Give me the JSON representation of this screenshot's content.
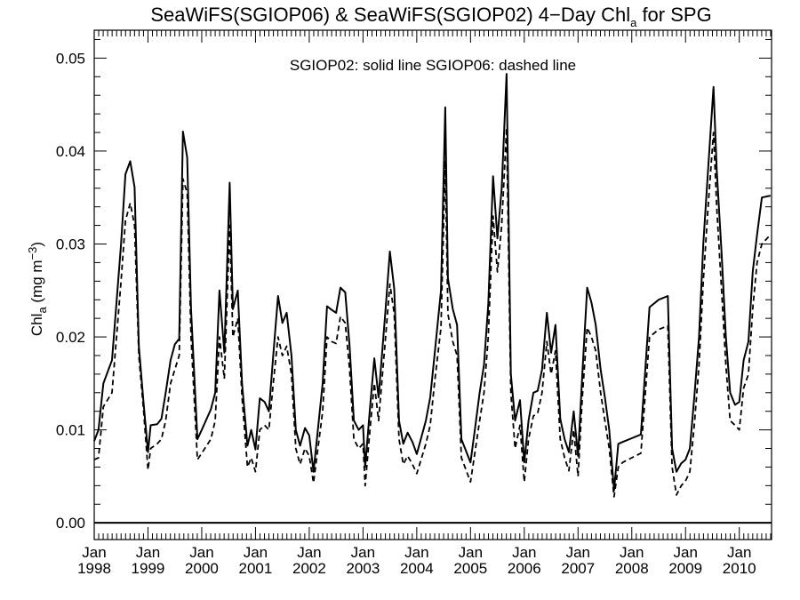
{
  "chart_data": {
    "type": "line",
    "title": "SeaWiFS(SGIOP06) & SeaWiFS(SGIOP02) 4−Day Chl",
    "title_subscript": "a",
    "title_suffix": " for SPG",
    "ylabel": "Chl",
    "ylabel_subscript": "a",
    "ylabel_units": " (mg m",
    "ylabel_units_superscript": "−3",
    "ylabel_units_close": ")",
    "xlabel": "",
    "ylim": [
      -0.0018,
      0.053
    ],
    "xlim": [
      1998.0,
      2010.6
    ],
    "grid": false,
    "annotation": "SGIOP02: solid line   SGIOP06: dashed line",
    "y_ticks": [
      0.0,
      0.01,
      0.02,
      0.03,
      0.04,
      0.05
    ],
    "y_tick_labels": [
      "0.00",
      "0.01",
      "0.02",
      "0.03",
      "0.04",
      "0.05"
    ],
    "x_ticks": [
      1998,
      1999,
      2000,
      2001,
      2002,
      2003,
      2004,
      2005,
      2006,
      2007,
      2008,
      2009,
      2010
    ],
    "x_tick_labels_top": [
      "Jan",
      "Jan",
      "Jan",
      "Jan",
      "Jan",
      "Jan",
      "Jan",
      "Jan",
      "Jan",
      "Jan",
      "Jan",
      "Jan",
      "Jan"
    ],
    "x_tick_labels_bottom": [
      "1998",
      "1999",
      "2000",
      "2001",
      "2002",
      "2003",
      "2004",
      "2005",
      "2006",
      "2007",
      "2008",
      "2009",
      "2010"
    ],
    "reference_line_y": 0.0,
    "series": [
      {
        "name": "SGIOP02",
        "style": "solid",
        "points": [
          [
            1998.0,
            0.0088
          ],
          [
            1998.08,
            0.01
          ],
          [
            1998.17,
            0.015
          ],
          [
            1998.33,
            0.0175
          ],
          [
            1998.5,
            0.03
          ],
          [
            1998.58,
            0.0375
          ],
          [
            1998.67,
            0.0389
          ],
          [
            1998.75,
            0.0361
          ],
          [
            1998.83,
            0.019
          ],
          [
            1998.92,
            0.0128
          ],
          [
            1999.0,
            0.0076
          ],
          [
            1999.05,
            0.0105
          ],
          [
            1999.17,
            0.0106
          ],
          [
            1999.25,
            0.0112
          ],
          [
            1999.33,
            0.014
          ],
          [
            1999.42,
            0.0175
          ],
          [
            1999.5,
            0.0192
          ],
          [
            1999.58,
            0.0198
          ],
          [
            1999.65,
            0.0421
          ],
          [
            1999.73,
            0.0393
          ],
          [
            1999.8,
            0.023
          ],
          [
            1999.92,
            0.009
          ],
          [
            2000.0,
            0.01
          ],
          [
            2000.17,
            0.0122
          ],
          [
            2000.25,
            0.014
          ],
          [
            2000.33,
            0.025
          ],
          [
            2000.42,
            0.0183
          ],
          [
            2000.52,
            0.0366
          ],
          [
            2000.58,
            0.023
          ],
          [
            2000.67,
            0.025
          ],
          [
            2000.75,
            0.015
          ],
          [
            2000.85,
            0.0083
          ],
          [
            2000.92,
            0.01
          ],
          [
            2001.0,
            0.0079
          ],
          [
            2001.08,
            0.0134
          ],
          [
            2001.17,
            0.013
          ],
          [
            2001.25,
            0.012
          ],
          [
            2001.33,
            0.018
          ],
          [
            2001.42,
            0.0244
          ],
          [
            2001.5,
            0.0215
          ],
          [
            2001.58,
            0.0226
          ],
          [
            2001.67,
            0.018
          ],
          [
            2001.75,
            0.01
          ],
          [
            2001.83,
            0.0083
          ],
          [
            2001.92,
            0.0102
          ],
          [
            2002.0,
            0.0094
          ],
          [
            2002.08,
            0.0055
          ],
          [
            2002.25,
            0.015
          ],
          [
            2002.33,
            0.0233
          ],
          [
            2002.42,
            0.0229
          ],
          [
            2002.5,
            0.0226
          ],
          [
            2002.58,
            0.0253
          ],
          [
            2002.67,
            0.0248
          ],
          [
            2002.75,
            0.019
          ],
          [
            2002.83,
            0.011
          ],
          [
            2002.92,
            0.01
          ],
          [
            2003.0,
            0.0105
          ],
          [
            2003.04,
            0.006
          ],
          [
            2003.13,
            0.0123
          ],
          [
            2003.21,
            0.0177
          ],
          [
            2003.29,
            0.0135
          ],
          [
            2003.42,
            0.023
          ],
          [
            2003.5,
            0.0292
          ],
          [
            2003.58,
            0.0252
          ],
          [
            2003.67,
            0.011
          ],
          [
            2003.75,
            0.0085
          ],
          [
            2003.83,
            0.0097
          ],
          [
            2003.92,
            0.0087
          ],
          [
            2004.0,
            0.0074
          ],
          [
            2004.17,
            0.011
          ],
          [
            2004.25,
            0.0135
          ],
          [
            2004.33,
            0.018
          ],
          [
            2004.45,
            0.025
          ],
          [
            2004.53,
            0.0447
          ],
          [
            2004.58,
            0.0263
          ],
          [
            2004.67,
            0.023
          ],
          [
            2004.75,
            0.0213
          ],
          [
            2004.83,
            0.009
          ],
          [
            2005.0,
            0.0065
          ],
          [
            2005.08,
            0.01
          ],
          [
            2005.17,
            0.014
          ],
          [
            2005.25,
            0.017
          ],
          [
            2005.33,
            0.0235
          ],
          [
            2005.42,
            0.0373
          ],
          [
            2005.5,
            0.0306
          ],
          [
            2005.58,
            0.036
          ],
          [
            2005.67,
            0.0483
          ],
          [
            2005.75,
            0.016
          ],
          [
            2005.83,
            0.011
          ],
          [
            2005.92,
            0.0132
          ],
          [
            2006.0,
            0.0065
          ],
          [
            2006.08,
            0.011
          ],
          [
            2006.17,
            0.014
          ],
          [
            2006.25,
            0.0142
          ],
          [
            2006.33,
            0.0165
          ],
          [
            2006.42,
            0.0226
          ],
          [
            2006.5,
            0.0183
          ],
          [
            2006.58,
            0.0213
          ],
          [
            2006.67,
            0.0112
          ],
          [
            2006.75,
            0.009
          ],
          [
            2006.83,
            0.0076
          ],
          [
            2006.92,
            0.012
          ],
          [
            2007.0,
            0.0072
          ],
          [
            2007.08,
            0.016
          ],
          [
            2007.17,
            0.0253
          ],
          [
            2007.25,
            0.0237
          ],
          [
            2007.33,
            0.0213
          ],
          [
            2007.42,
            0.0165
          ],
          [
            2007.5,
            0.0135
          ],
          [
            2007.58,
            0.01
          ],
          [
            2007.67,
            0.0035
          ],
          [
            2007.75,
            0.0085
          ],
          [
            2007.83,
            0.0087
          ],
          [
            2008.0,
            0.0091
          ],
          [
            2008.17,
            0.0095
          ],
          [
            2008.33,
            0.0232
          ],
          [
            2008.5,
            0.024
          ],
          [
            2008.67,
            0.0244
          ],
          [
            2008.75,
            0.008
          ],
          [
            2008.83,
            0.0055
          ],
          [
            2008.92,
            0.0064
          ],
          [
            2009.0,
            0.0068
          ],
          [
            2009.08,
            0.008
          ],
          [
            2009.17,
            0.014
          ],
          [
            2009.25,
            0.02
          ],
          [
            2009.33,
            0.03
          ],
          [
            2009.42,
            0.038
          ],
          [
            2009.52,
            0.0469
          ],
          [
            2009.58,
            0.038
          ],
          [
            2009.67,
            0.029
          ],
          [
            2009.75,
            0.02
          ],
          [
            2009.83,
            0.014
          ],
          [
            2009.92,
            0.0127
          ],
          [
            2010.0,
            0.013
          ],
          [
            2010.08,
            0.0175
          ],
          [
            2010.17,
            0.0195
          ],
          [
            2010.25,
            0.027
          ],
          [
            2010.33,
            0.031
          ],
          [
            2010.42,
            0.035
          ],
          [
            2010.58,
            0.0352
          ]
        ]
      },
      {
        "name": "SGIOP06",
        "style": "dashed",
        "points": [
          [
            1998.0,
            0.0068
          ],
          [
            1998.08,
            0.007
          ],
          [
            1998.17,
            0.0125
          ],
          [
            1998.33,
            0.014
          ],
          [
            1998.5,
            0.026
          ],
          [
            1998.58,
            0.0325
          ],
          [
            1998.67,
            0.0344
          ],
          [
            1998.75,
            0.032
          ],
          [
            1998.83,
            0.018
          ],
          [
            1998.92,
            0.012
          ],
          [
            1999.0,
            0.0057
          ],
          [
            1999.05,
            0.008
          ],
          [
            1999.17,
            0.0085
          ],
          [
            1999.25,
            0.009
          ],
          [
            1999.33,
            0.011
          ],
          [
            1999.42,
            0.015
          ],
          [
            1999.5,
            0.0165
          ],
          [
            1999.58,
            0.018
          ],
          [
            1999.65,
            0.037
          ],
          [
            1999.73,
            0.0355
          ],
          [
            1999.8,
            0.02
          ],
          [
            1999.92,
            0.0068
          ],
          [
            2000.0,
            0.0075
          ],
          [
            2000.17,
            0.009
          ],
          [
            2000.25,
            0.011
          ],
          [
            2000.33,
            0.02
          ],
          [
            2000.42,
            0.0155
          ],
          [
            2000.52,
            0.032
          ],
          [
            2000.58,
            0.02
          ],
          [
            2000.67,
            0.022
          ],
          [
            2000.75,
            0.0135
          ],
          [
            2000.85,
            0.006
          ],
          [
            2000.92,
            0.007
          ],
          [
            2001.0,
            0.0055
          ],
          [
            2001.08,
            0.01
          ],
          [
            2001.17,
            0.0105
          ],
          [
            2001.25,
            0.01
          ],
          [
            2001.33,
            0.015
          ],
          [
            2001.42,
            0.02
          ],
          [
            2001.5,
            0.018
          ],
          [
            2001.58,
            0.019
          ],
          [
            2001.67,
            0.016
          ],
          [
            2001.75,
            0.008
          ],
          [
            2001.83,
            0.0063
          ],
          [
            2001.92,
            0.008
          ],
          [
            2002.0,
            0.0072
          ],
          [
            2002.08,
            0.0043
          ],
          [
            2002.25,
            0.012
          ],
          [
            2002.33,
            0.02
          ],
          [
            2002.42,
            0.0195
          ],
          [
            2002.5,
            0.0193
          ],
          [
            2002.58,
            0.0222
          ],
          [
            2002.67,
            0.0215
          ],
          [
            2002.75,
            0.0165
          ],
          [
            2002.83,
            0.009
          ],
          [
            2002.92,
            0.008
          ],
          [
            2003.0,
            0.0085
          ],
          [
            2003.04,
            0.004
          ],
          [
            2003.13,
            0.01
          ],
          [
            2003.21,
            0.015
          ],
          [
            2003.29,
            0.011
          ],
          [
            2003.42,
            0.02
          ],
          [
            2003.5,
            0.0257
          ],
          [
            2003.58,
            0.0225
          ],
          [
            2003.67,
            0.009
          ],
          [
            2003.75,
            0.0063
          ],
          [
            2003.83,
            0.0072
          ],
          [
            2003.92,
            0.0063
          ],
          [
            2004.0,
            0.0053
          ],
          [
            2004.17,
            0.0085
          ],
          [
            2004.25,
            0.0105
          ],
          [
            2004.33,
            0.015
          ],
          [
            2004.45,
            0.021
          ],
          [
            2004.53,
            0.039
          ],
          [
            2004.58,
            0.0225
          ],
          [
            2004.67,
            0.0195
          ],
          [
            2004.75,
            0.018
          ],
          [
            2004.83,
            0.007
          ],
          [
            2005.0,
            0.0044
          ],
          [
            2005.08,
            0.0075
          ],
          [
            2005.17,
            0.011
          ],
          [
            2005.25,
            0.014
          ],
          [
            2005.33,
            0.02
          ],
          [
            2005.42,
            0.033
          ],
          [
            2005.5,
            0.027
          ],
          [
            2005.58,
            0.032
          ],
          [
            2005.67,
            0.0425
          ],
          [
            2005.75,
            0.014
          ],
          [
            2005.83,
            0.008
          ],
          [
            2005.92,
            0.0105
          ],
          [
            2006.0,
            0.0044
          ],
          [
            2006.08,
            0.009
          ],
          [
            2006.17,
            0.0115
          ],
          [
            2006.25,
            0.0118
          ],
          [
            2006.33,
            0.014
          ],
          [
            2006.42,
            0.0195
          ],
          [
            2006.5,
            0.016
          ],
          [
            2006.58,
            0.0185
          ],
          [
            2006.67,
            0.009
          ],
          [
            2006.75,
            0.007
          ],
          [
            2006.83,
            0.0056
          ],
          [
            2006.92,
            0.01
          ],
          [
            2007.0,
            0.005
          ],
          [
            2007.08,
            0.0135
          ],
          [
            2007.17,
            0.021
          ],
          [
            2007.25,
            0.02
          ],
          [
            2007.33,
            0.0185
          ],
          [
            2007.42,
            0.014
          ],
          [
            2007.5,
            0.011
          ],
          [
            2007.58,
            0.008
          ],
          [
            2007.67,
            0.0028
          ],
          [
            2007.75,
            0.006
          ],
          [
            2007.83,
            0.0065
          ],
          [
            2008.0,
            0.007
          ],
          [
            2008.17,
            0.0075
          ],
          [
            2008.33,
            0.02
          ],
          [
            2008.5,
            0.0208
          ],
          [
            2008.67,
            0.0212
          ],
          [
            2008.75,
            0.006
          ],
          [
            2008.83,
            0.003
          ],
          [
            2008.92,
            0.004
          ],
          [
            2009.0,
            0.0045
          ],
          [
            2009.08,
            0.0055
          ],
          [
            2009.17,
            0.011
          ],
          [
            2009.25,
            0.017
          ],
          [
            2009.33,
            0.026
          ],
          [
            2009.42,
            0.034
          ],
          [
            2009.52,
            0.042
          ],
          [
            2009.58,
            0.034
          ],
          [
            2009.67,
            0.025
          ],
          [
            2009.75,
            0.017
          ],
          [
            2009.83,
            0.011
          ],
          [
            2009.92,
            0.0105
          ],
          [
            2010.0,
            0.01
          ],
          [
            2010.08,
            0.0145
          ],
          [
            2010.17,
            0.016
          ],
          [
            2010.25,
            0.023
          ],
          [
            2010.33,
            0.028
          ],
          [
            2010.42,
            0.03
          ],
          [
            2010.58,
            0.031
          ]
        ]
      }
    ]
  }
}
